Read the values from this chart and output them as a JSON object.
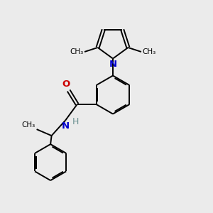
{
  "bg_color": "#ebebeb",
  "bond_color": "#000000",
  "N_color": "#0000cc",
  "O_color": "#cc0000",
  "H_color": "#6a9090",
  "bond_width": 1.4,
  "font_size": 9,
  "figsize": [
    3.0,
    3.0
  ],
  "dpi": 100,
  "xlim": [
    0,
    10
  ],
  "ylim": [
    0,
    10
  ]
}
